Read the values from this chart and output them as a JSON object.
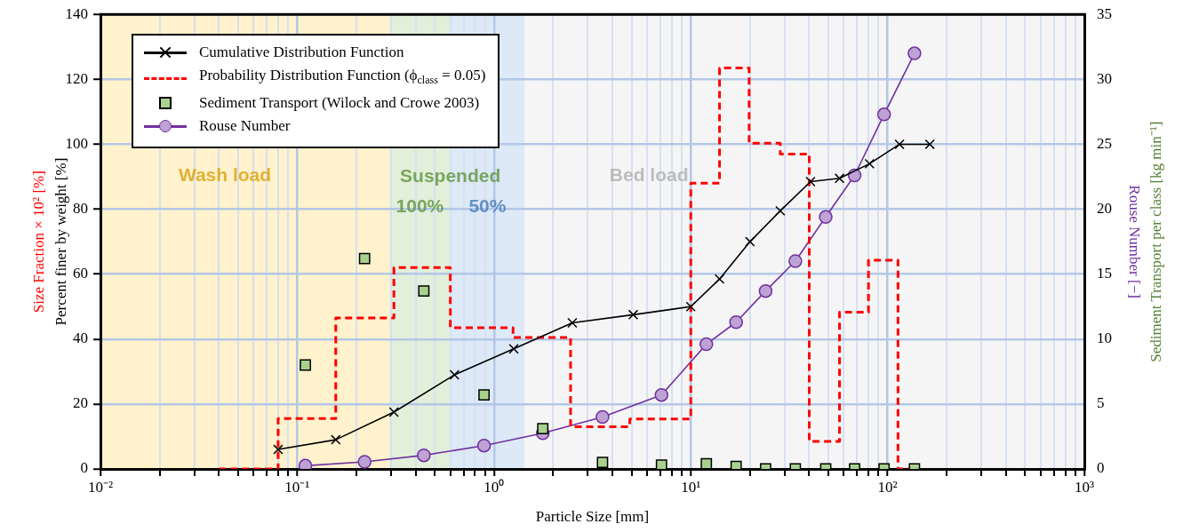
{
  "chart_data": {
    "type": "line",
    "xlabel": "Particle Size [mm]",
    "ylabel": "Percent finer by weight [%]",
    "y2label": "Rouse Number [−]",
    "log": "x",
    "grid": true,
    "legend": "top left",
    "xlim": [
      0.01,
      1000
    ],
    "xticks": [
      {
        "value": 0.01,
        "label": "10⁻²"
      },
      {
        "value": 0.02,
        "label": null
      },
      {
        "value": 0.03,
        "label": null
      },
      {
        "value": 0.04,
        "label": null
      },
      {
        "value": 0.05,
        "label": null
      },
      {
        "value": 0.06,
        "label": null
      },
      {
        "value": 0.07,
        "label": null
      },
      {
        "value": 0.08,
        "label": null
      },
      {
        "value": 0.09,
        "label": null
      },
      {
        "value": 0.1,
        "label": "10⁻¹"
      },
      {
        "value": 0.2,
        "label": null
      },
      {
        "value": 0.3,
        "label": null
      },
      {
        "value": 0.4,
        "label": null
      },
      {
        "value": 0.5,
        "label": null
      },
      {
        "value": 0.6,
        "label": null
      },
      {
        "value": 0.7,
        "label": null
      },
      {
        "value": 0.8,
        "label": null
      },
      {
        "value": 0.9,
        "label": null
      },
      {
        "value": 1,
        "label": "10⁰"
      },
      {
        "value": 2,
        "label": null
      },
      {
        "value": 3,
        "label": null
      },
      {
        "value": 4,
        "label": null
      },
      {
        "value": 5,
        "label": null
      },
      {
        "value": 6,
        "label": null
      },
      {
        "value": 7,
        "label": null
      },
      {
        "value": 8,
        "label": null
      },
      {
        "value": 9,
        "label": null
      },
      {
        "value": 10,
        "label": "10¹"
      },
      {
        "value": 20,
        "label": null
      },
      {
        "value": 30,
        "label": null
      },
      {
        "value": 40,
        "label": null
      },
      {
        "value": 50,
        "label": null
      },
      {
        "value": 60,
        "label": null
      },
      {
        "value": 70,
        "label": null
      },
      {
        "value": 80,
        "label": null
      },
      {
        "value": 90,
        "label": null
      },
      {
        "value": 100,
        "label": "10²"
      },
      {
        "value": 200,
        "label": null
      },
      {
        "value": 300,
        "label": null
      },
      {
        "value": 400,
        "label": null
      },
      {
        "value": 500,
        "label": null
      },
      {
        "value": 600,
        "label": null
      },
      {
        "value": 700,
        "label": null
      },
      {
        "value": 800,
        "label": null
      },
      {
        "value": 900,
        "label": null
      },
      {
        "value": 1000,
        "label": "10³"
      }
    ],
    "ylim": [
      0,
      140
    ],
    "yticks": [
      0,
      20,
      40,
      60,
      80,
      100,
      120,
      140
    ],
    "y2lim": [
      0,
      35
    ],
    "y2ticks": [
      0,
      5,
      10,
      15,
      20,
      25,
      30,
      35
    ],
    "bands": [
      {
        "axis": "x",
        "from": 0.01,
        "to": 0.294,
        "label": "Wash load",
        "color": "#fff2cc"
      },
      {
        "axis": "x",
        "from": 0.294,
        "to": 0.6,
        "label": "100%",
        "color": "#e2efda"
      },
      {
        "axis": "x",
        "from": 0.6,
        "to": 1.43,
        "label": "50%",
        "color": "#dde9f7"
      },
      {
        "axis": "x",
        "from": 1.43,
        "to": 1000,
        "label": "Bed load",
        "color": "#f5f5f5"
      }
    ],
    "annotations": [
      {
        "text": "Suspended",
        "x": 0.6,
        "y": 90
      },
      "Size Fraction × 10² [%]",
      "Sediment Transport per class [kg min⁻¹]"
    ],
    "series": [
      {
        "name": "Cumulative Distribution Function",
        "type": "line",
        "color": "#000000",
        "marker": "cross",
        "line_style": "solid",
        "x": [
          0.08,
          0.157,
          0.31,
          0.63,
          1.26,
          2.5,
          5.1,
          10,
          14,
          20,
          28.5,
          40.6,
          57,
          81,
          115,
          164
        ],
        "values": [
          6,
          9,
          17.5,
          29,
          37,
          45,
          47.5,
          50,
          58.5,
          70,
          79.5,
          88.5,
          89.5,
          94,
          100,
          100
        ]
      },
      {
        "name": "Probability Distribution Function (ϕ$_{class}$ = 0.05)",
        "type": "step",
        "color": "#ff0000",
        "marker": "none",
        "line_style": "dashed",
        "x": [
          0.04,
          0.08,
          0.157,
          0.31,
          0.6,
          1.25,
          2.45,
          4.9,
          10,
          14,
          19.8,
          28.5,
          40,
          57,
          80,
          113,
          130
        ],
        "values": [
          0,
          15.5,
          46.5,
          62,
          43.5,
          40.5,
          13,
          15.4,
          88,
          123.5,
          100.3,
          97,
          8.5,
          48.3,
          64.3,
          0,
          0
        ]
      },
      {
        "name": "Sediment Transport (Wilock and Crowe 2003)",
        "type": "scatter",
        "axis": "y2",
        "color": "#a9d18e",
        "marker": "square",
        "x": [
          0.11,
          0.22,
          0.44,
          0.89,
          1.77,
          3.56,
          7.1,
          12,
          17,
          24,
          34,
          48.5,
          68,
          96,
          137
        ],
        "values": [
          8,
          16.2,
          13.7,
          5.7,
          3.1,
          0.5,
          0.3,
          0.4,
          0.2,
          0,
          0,
          0,
          0,
          0,
          0
        ]
      },
      {
        "name": "Rouse Number",
        "type": "line",
        "axis": "y2",
        "color": "#7030a0",
        "marker": "circle",
        "line_style": "solid",
        "x": [
          0.11,
          0.22,
          0.44,
          0.89,
          1.77,
          3.56,
          7.1,
          12,
          17,
          24,
          34,
          48.5,
          68,
          96,
          137
        ],
        "values": [
          0.25,
          0.55,
          1.05,
          1.8,
          2.75,
          4,
          5.7,
          9.6,
          11.3,
          13.7,
          16,
          19.4,
          22.6,
          27.3,
          32
        ]
      }
    ]
  }
}
